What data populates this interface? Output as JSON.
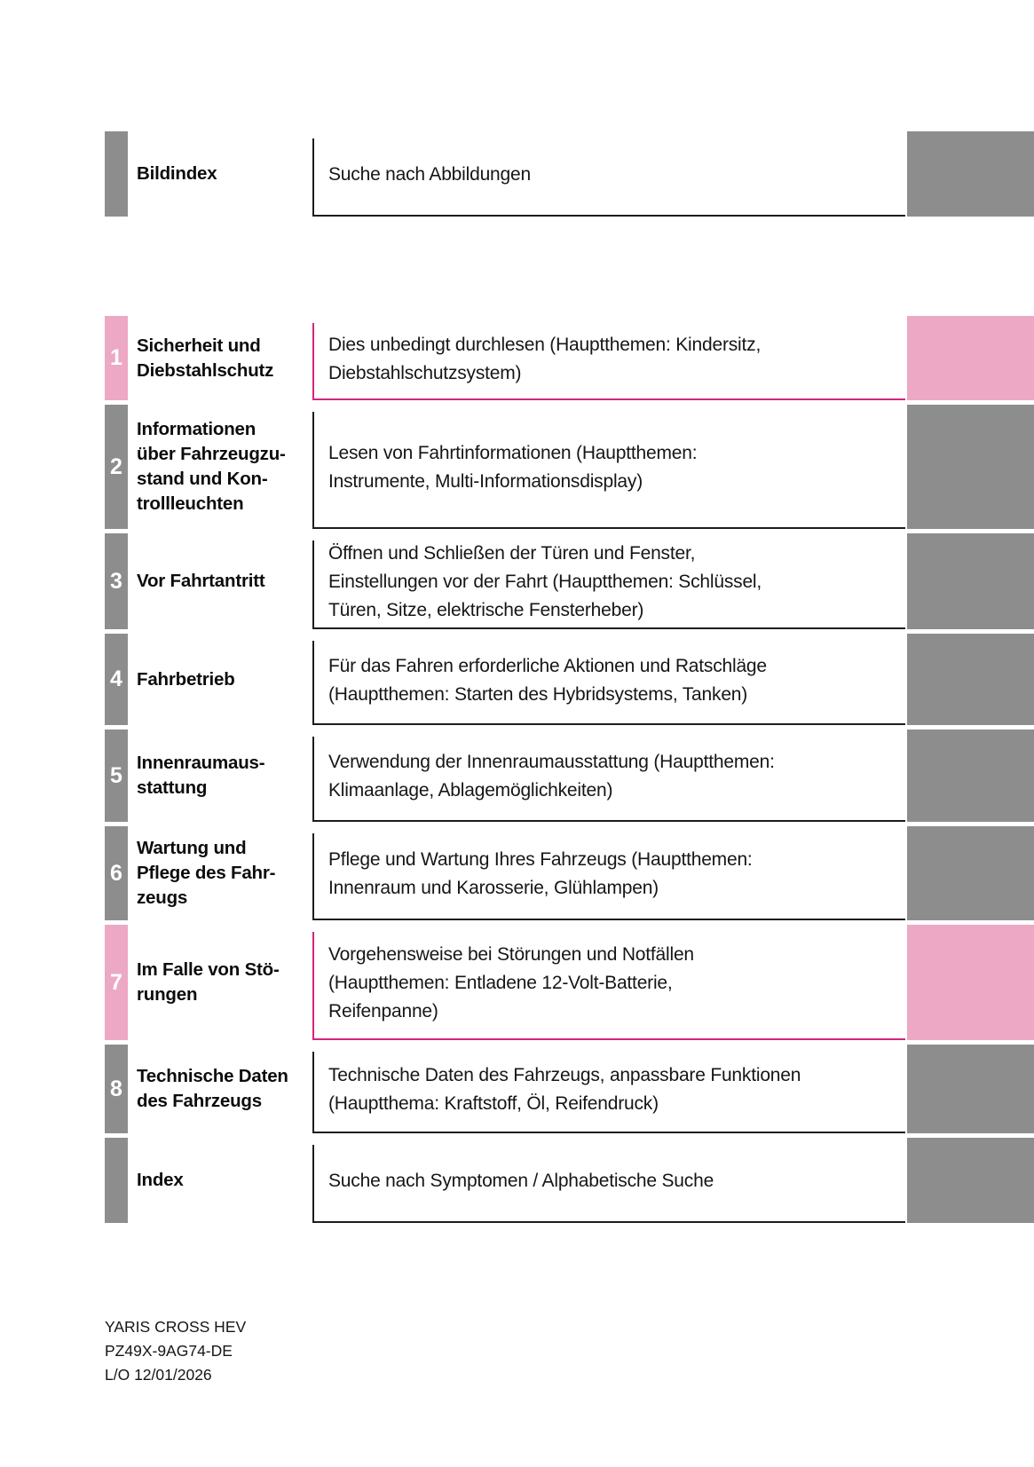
{
  "colors": {
    "gray": "#8d8d8d",
    "pink": "#eca8c5",
    "pink_border": "#d4247e",
    "dark_border": "#1c1c1c"
  },
  "rows": [
    {
      "id": "bildindex",
      "number": "",
      "accent": "gray",
      "label": "Bildindex",
      "description": "Suche nach Abbildungen"
    },
    {
      "id": "1",
      "number": "1",
      "accent": "pink",
      "label": "Sicherheit und\nDiebstahlschutz",
      "description": "Dies unbedingt durchlesen (Hauptthemen: Kindersitz,\nDiebstahlschutzsystem)"
    },
    {
      "id": "2",
      "number": "2",
      "accent": "gray",
      "label": "Informationen\nüber Fahrzeugzu-\nstand und Kon-\ntrollleuchten",
      "description": "Lesen von Fahrtinformationen (Hauptthemen:\nInstrumente, Multi-Informationsdisplay)"
    },
    {
      "id": "3",
      "number": "3",
      "accent": "gray",
      "label": "Vor Fahrtantritt",
      "description": "Öffnen und Schließen der Türen und Fenster,\nEinstellungen vor der Fahrt (Hauptthemen: Schlüssel,\nTüren, Sitze, elektrische Fensterheber)"
    },
    {
      "id": "4",
      "number": "4",
      "accent": "gray",
      "label": "Fahrbetrieb",
      "description": "Für das Fahren erforderliche Aktionen und Ratschläge\n(Hauptthemen: Starten des Hybridsystems, Tanken)"
    },
    {
      "id": "5",
      "number": "5",
      "accent": "gray",
      "label": "Innenraumaus-\nstattung",
      "description": "Verwendung der Innenraumausstattung (Hauptthemen:\nKlimaanlage, Ablagemöglichkeiten)"
    },
    {
      "id": "6",
      "number": "6",
      "accent": "gray",
      "label": "Wartung und\nPflege des Fahr-\nzeugs",
      "description": "Pflege und Wartung Ihres Fahrzeugs (Hauptthemen:\nInnenraum und Karosserie, Glühlampen)"
    },
    {
      "id": "7",
      "number": "7",
      "accent": "pink",
      "label": "Im Falle von Stö-\nrungen",
      "description": "Vorgehensweise bei Störungen und Notfällen\n(Hauptthemen: Entladene 12-Volt-Batterie,\nReifenpanne)"
    },
    {
      "id": "8",
      "number": "8",
      "accent": "gray",
      "label": "Technische Daten\ndes Fahrzeugs",
      "description": "Technische Daten des Fahrzeugs, anpassbare Funktionen\n(Hauptthema: Kraftstoff, Öl, Reifendruck)"
    },
    {
      "id": "index",
      "number": "",
      "accent": "gray",
      "label": "Index",
      "description": "Suche nach Symptomen / Alphabetische Suche"
    }
  ],
  "footer": {
    "lines": [
      "YARIS CROSS HEV",
      "PZ49X-9AG74-DE",
      "L/O 12/01/2026"
    ]
  }
}
